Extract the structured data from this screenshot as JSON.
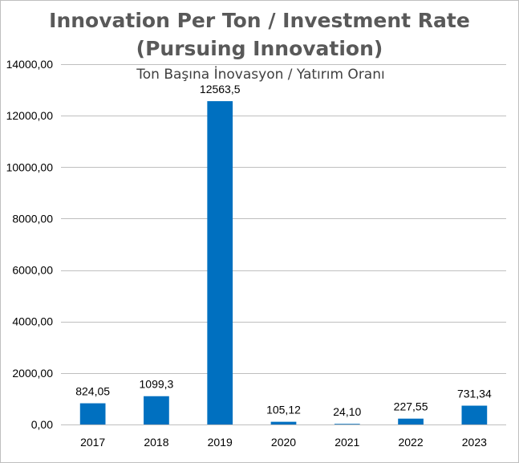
{
  "chart_data": {
    "type": "bar",
    "title_lines": [
      "Innovation Per Ton / Investment Rate",
      "(Pursuing Innovation)"
    ],
    "subtitle": "Ton Başına İnovasyon / Yatırım Oranı",
    "categories": [
      "2017",
      "2018",
      "2019",
      "2020",
      "2021",
      "2022",
      "2023"
    ],
    "values": [
      824.05,
      1099.3,
      12563.5,
      105.12,
      24.1,
      227.55,
      731.34
    ],
    "data_labels": [
      "824,05",
      "1099,3",
      "12563,5",
      "105,12",
      "24,10",
      "227,55",
      "731,34"
    ],
    "ylim": [
      0,
      14000
    ],
    "yticks": [
      0,
      2000,
      4000,
      6000,
      8000,
      10000,
      12000,
      14000
    ],
    "ytick_labels": [
      "0,00",
      "2000,00",
      "4000,00",
      "6000,00",
      "8000,00",
      "10000,00",
      "12000,00",
      "14000,00"
    ],
    "xlabel": "",
    "ylabel": "",
    "grid": true,
    "legend": "none",
    "bar_color": "#0070c0",
    "grid_color": "#bfbfbf"
  }
}
